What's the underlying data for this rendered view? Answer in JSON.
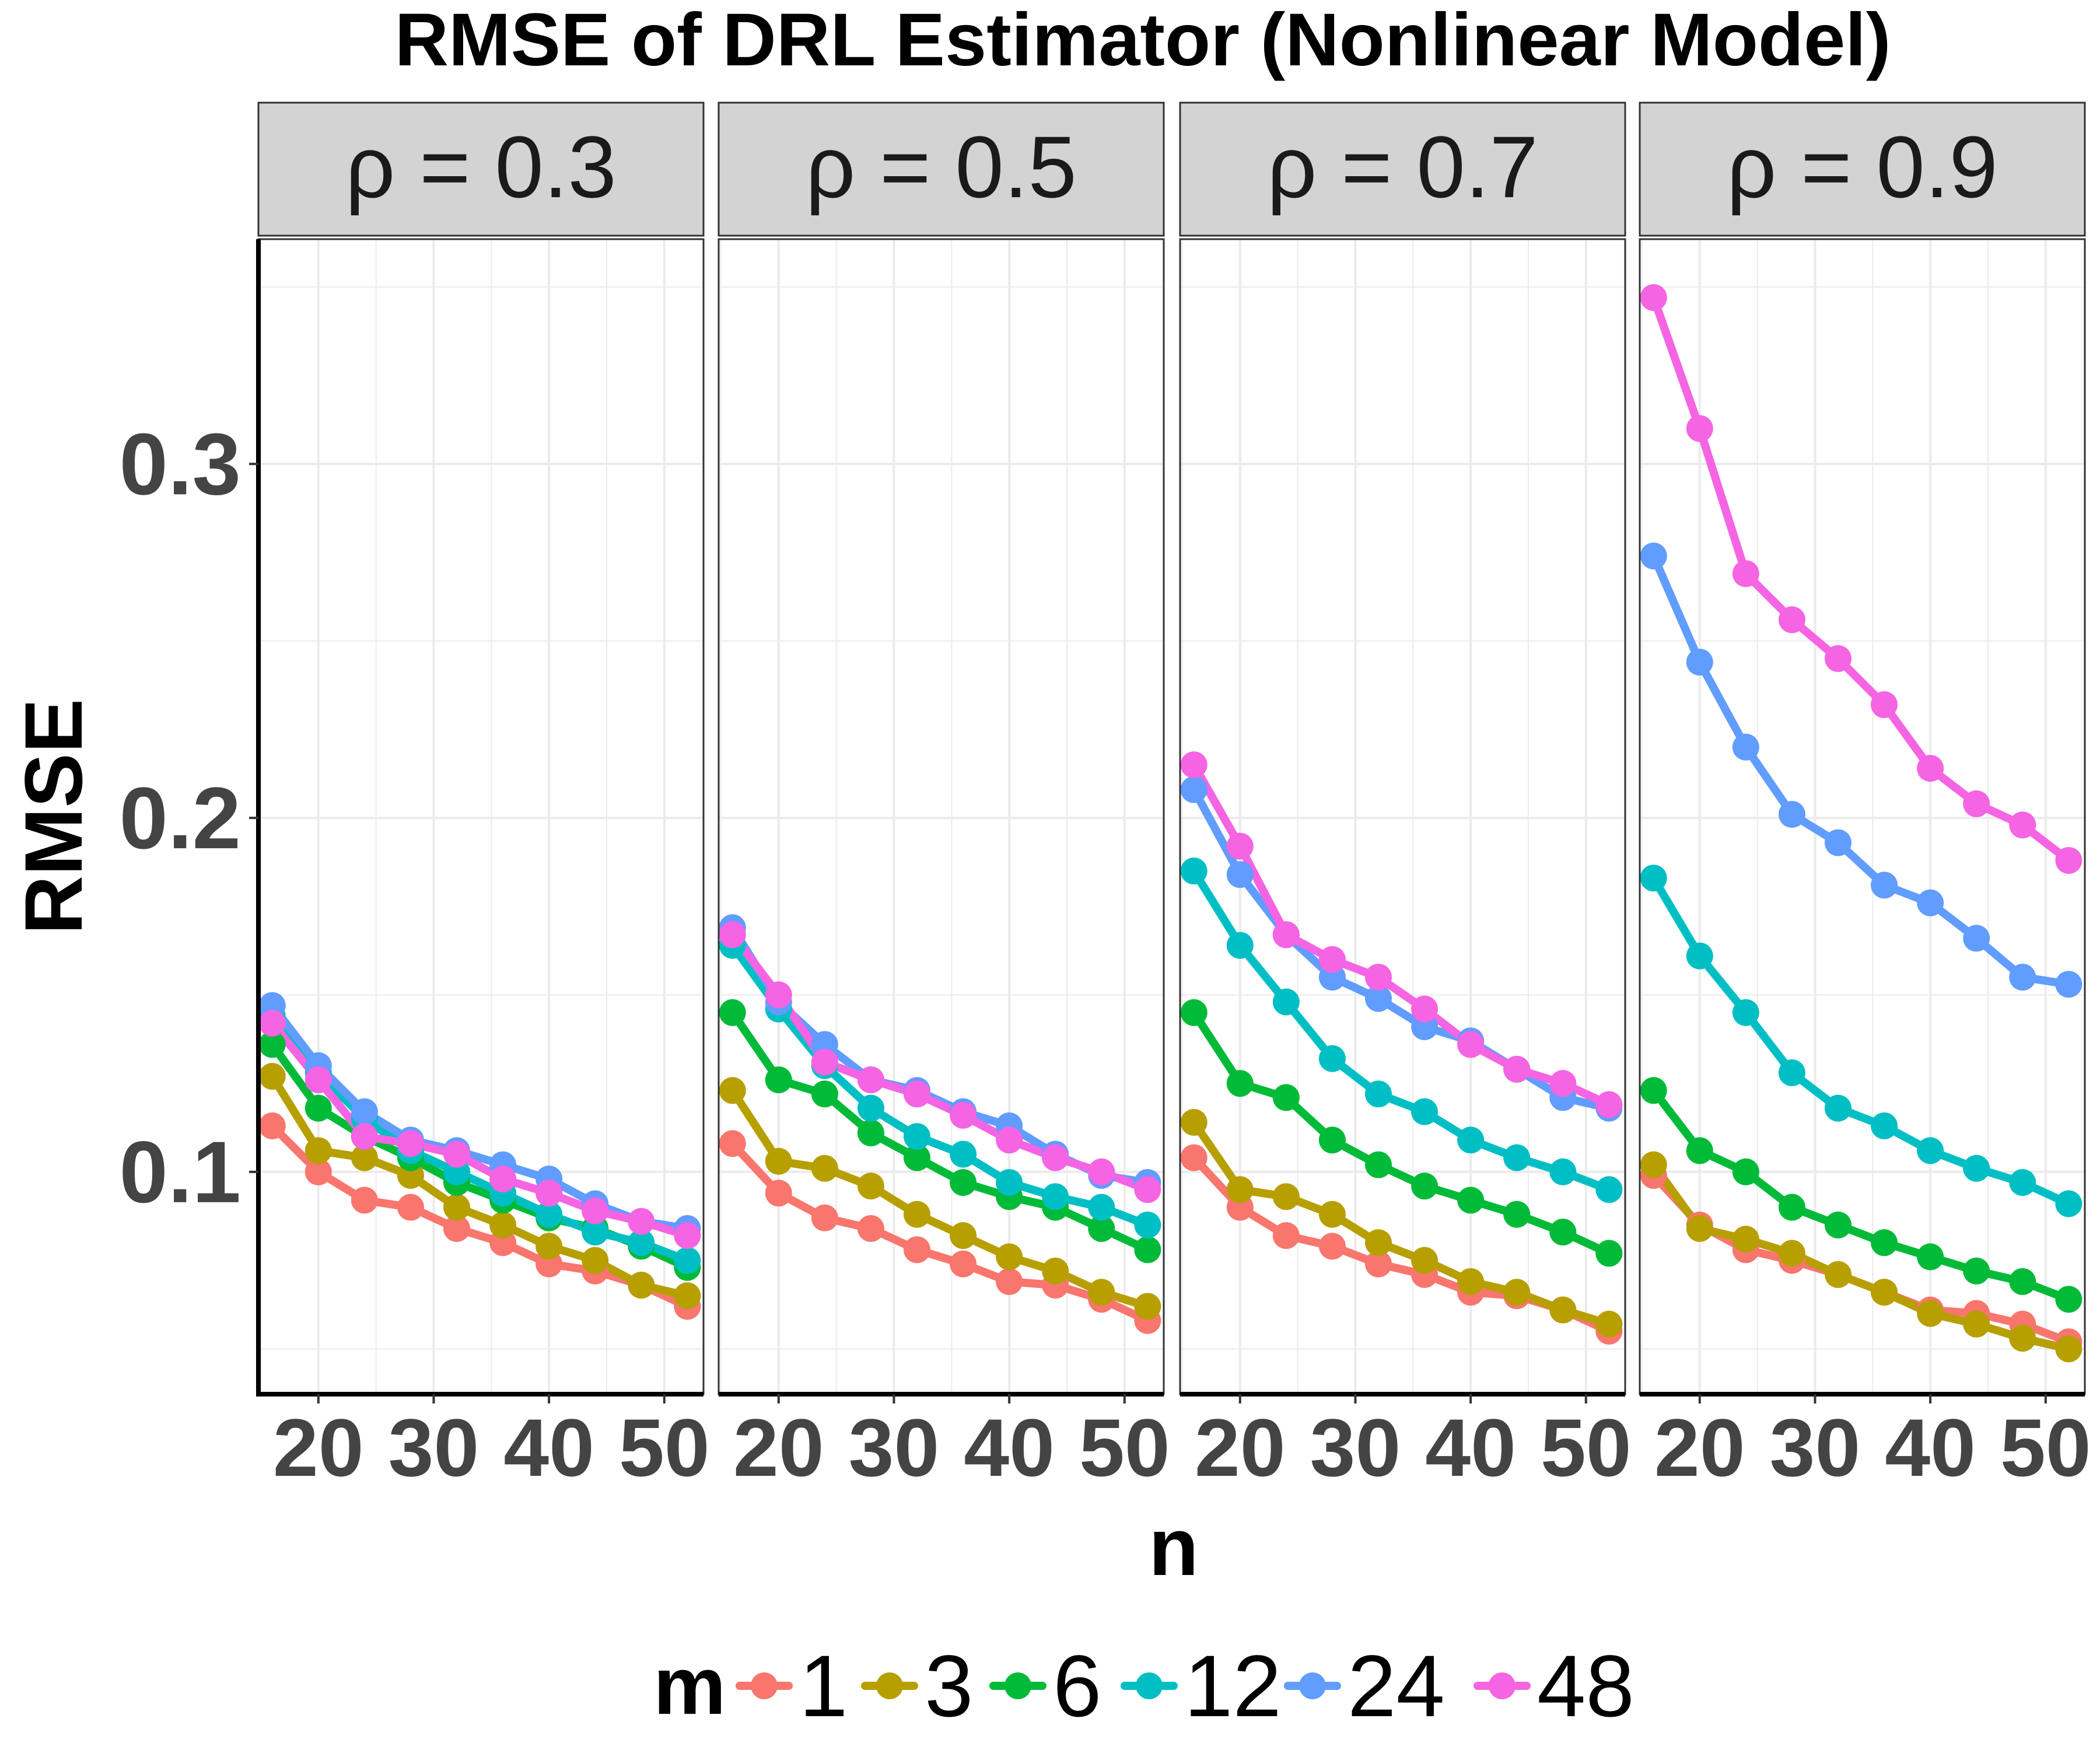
{
  "chart_data": {
    "type": "line",
    "title": "RMSE of DRL Estimator (Nonlinear Model)",
    "xlabel": "n",
    "ylabel": "RMSE",
    "x": [
      16,
      20,
      24,
      28,
      32,
      36,
      40,
      44,
      48,
      52
    ],
    "xticks": [
      20,
      30,
      40,
      50
    ],
    "xlim": [
      14.8,
      53.4
    ],
    "ylim": [
      0.0372,
      0.3635
    ],
    "yticks": [
      0.1,
      0.2,
      0.3
    ],
    "yticklabels": [
      "0.1",
      "0.2",
      "0.3"
    ],
    "grid": true,
    "legend": {
      "title": "m",
      "position": "bottom",
      "entries": [
        "1",
        "3",
        "6",
        "12",
        "24",
        "48"
      ]
    },
    "colors": {
      "1": "#F8766D",
      "3": "#B79F00",
      "6": "#00BA38",
      "12": "#00BFC4",
      "24": "#619CFF",
      "48": "#F564E3",
      "strip_bg": "#D3D3D3",
      "grid": "#EBEBEB",
      "axis_text": "#444444"
    },
    "panels": [
      {
        "label": "ρ = 0.3",
        "series": [
          {
            "name": "1",
            "values": [
              0.113,
              0.1,
              0.092,
              0.09,
              0.084,
              0.08,
              0.074,
              0.072,
              0.068,
              0.062
            ]
          },
          {
            "name": "3",
            "values": [
              0.127,
              0.106,
              0.104,
              0.099,
              0.09,
              0.085,
              0.079,
              0.075,
              0.068,
              0.065
            ]
          },
          {
            "name": "6",
            "values": [
              0.136,
              0.118,
              0.11,
              0.104,
              0.097,
              0.092,
              0.087,
              0.084,
              0.079,
              0.073
            ]
          },
          {
            "name": "12",
            "values": [
              0.144,
              0.128,
              0.115,
              0.106,
              0.1,
              0.094,
              0.088,
              0.083,
              0.08,
              0.075
            ]
          },
          {
            "name": "24",
            "values": [
              0.147,
              0.13,
              0.117,
              0.109,
              0.106,
              0.102,
              0.098,
              0.091,
              0.086,
              0.084
            ]
          },
          {
            "name": "48",
            "values": [
              0.142,
              0.126,
              0.11,
              0.108,
              0.105,
              0.098,
              0.094,
              0.089,
              0.086,
              0.082
            ]
          }
        ]
      },
      {
        "label": "ρ = 0.5",
        "series": [
          {
            "name": "1",
            "values": [
              0.108,
              0.094,
              0.087,
              0.084,
              0.078,
              0.074,
              0.069,
              0.068,
              0.064,
              0.058
            ]
          },
          {
            "name": "3",
            "values": [
              0.123,
              0.103,
              0.101,
              0.096,
              0.088,
              0.082,
              0.076,
              0.072,
              0.066,
              0.062
            ]
          },
          {
            "name": "6",
            "values": [
              0.145,
              0.126,
              0.122,
              0.111,
              0.104,
              0.097,
              0.093,
              0.09,
              0.084,
              0.078
            ]
          },
          {
            "name": "12",
            "values": [
              0.164,
              0.146,
              0.13,
              0.118,
              0.11,
              0.105,
              0.097,
              0.093,
              0.09,
              0.085
            ]
          },
          {
            "name": "24",
            "values": [
              0.169,
              0.148,
              0.136,
              0.126,
              0.123,
              0.117,
              0.113,
              0.105,
              0.099,
              0.097
            ]
          },
          {
            "name": "48",
            "values": [
              0.167,
              0.15,
              0.131,
              0.126,
              0.122,
              0.116,
              0.109,
              0.104,
              0.1,
              0.095
            ]
          }
        ]
      },
      {
        "label": "ρ = 0.7",
        "series": [
          {
            "name": "1",
            "values": [
              0.104,
              0.09,
              0.082,
              0.079,
              0.074,
              0.071,
              0.066,
              0.065,
              0.061,
              0.055
            ]
          },
          {
            "name": "3",
            "values": [
              0.114,
              0.095,
              0.093,
              0.088,
              0.08,
              0.075,
              0.069,
              0.066,
              0.061,
              0.057
            ]
          },
          {
            "name": "6",
            "values": [
              0.145,
              0.125,
              0.121,
              0.109,
              0.102,
              0.096,
              0.092,
              0.088,
              0.083,
              0.077
            ]
          },
          {
            "name": "12",
            "values": [
              0.185,
              0.164,
              0.148,
              0.132,
              0.122,
              0.117,
              0.109,
              0.104,
              0.1,
              0.095
            ]
          },
          {
            "name": "24",
            "values": [
              0.208,
              0.184,
              0.167,
              0.155,
              0.149,
              0.141,
              0.137,
              0.129,
              0.121,
              0.118
            ]
          },
          {
            "name": "48",
            "values": [
              0.215,
              0.192,
              0.167,
              0.16,
              0.155,
              0.146,
              0.136,
              0.129,
              0.125,
              0.119
            ]
          }
        ]
      },
      {
        "label": "ρ = 0.9",
        "series": [
          {
            "name": "1",
            "values": [
              0.099,
              0.085,
              0.078,
              0.075,
              0.071,
              0.066,
              0.061,
              0.06,
              0.057,
              0.052
            ]
          },
          {
            "name": "3",
            "values": [
              0.102,
              0.084,
              0.081,
              0.077,
              0.071,
              0.066,
              0.06,
              0.057,
              0.053,
              0.05
            ]
          },
          {
            "name": "6",
            "values": [
              0.123,
              0.106,
              0.1,
              0.09,
              0.085,
              0.08,
              0.076,
              0.072,
              0.069,
              0.064
            ]
          },
          {
            "name": "12",
            "values": [
              0.183,
              0.161,
              0.145,
              0.128,
              0.118,
              0.113,
              0.106,
              0.101,
              0.097,
              0.091
            ]
          },
          {
            "name": "24",
            "values": [
              0.274,
              0.244,
              0.22,
              0.201,
              0.193,
              0.181,
              0.176,
              0.166,
              0.155,
              0.153
            ]
          },
          {
            "name": "48",
            "values": [
              0.347,
              0.31,
              0.269,
              0.256,
              0.245,
              0.232,
              0.214,
              0.204,
              0.198,
              0.188
            ]
          }
        ]
      }
    ]
  }
}
